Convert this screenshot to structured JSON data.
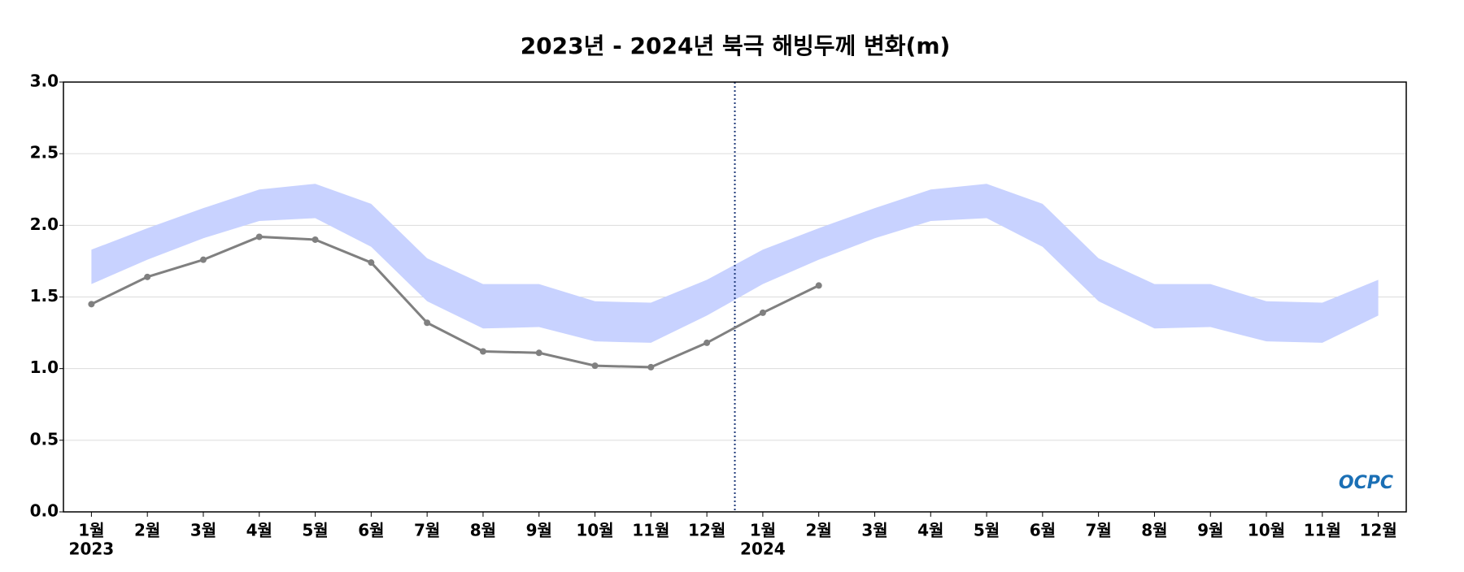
{
  "chart_data": {
    "type": "line",
    "title": "2023년 - 2024년 북극 해빙두께 변화(m)",
    "categories": [
      "1월",
      "2월",
      "3월",
      "4월",
      "5월",
      "6월",
      "7월",
      "8월",
      "9월",
      "10월",
      "11월",
      "12월",
      "1월",
      "2월",
      "3월",
      "4월",
      "5월",
      "6월",
      "7월",
      "8월",
      "9월",
      "10월",
      "11월",
      "12월"
    ],
    "years": [
      "2023",
      "2024"
    ],
    "band": {
      "color": "#c8d2ff",
      "upper": [
        1.83,
        1.98,
        2.12,
        2.25,
        2.29,
        2.15,
        1.77,
        1.59,
        1.59,
        1.47,
        1.46,
        1.62,
        1.83,
        1.98,
        2.12,
        2.25,
        2.29,
        2.15,
        1.77,
        1.59,
        1.59,
        1.47,
        1.46,
        1.62
      ],
      "lower": [
        1.59,
        1.76,
        1.91,
        2.03,
        2.05,
        1.85,
        1.47,
        1.28,
        1.29,
        1.19,
        1.18,
        1.37,
        1.59,
        1.76,
        1.91,
        2.03,
        2.05,
        1.85,
        1.47,
        1.28,
        1.29,
        1.19,
        1.18,
        1.37
      ]
    },
    "line": {
      "color": "#808080",
      "values": [
        1.45,
        1.64,
        1.76,
        1.92,
        1.9,
        1.74,
        1.32,
        1.12,
        1.11,
        1.02,
        1.01,
        1.18,
        1.39,
        1.58,
        null,
        null,
        null,
        null,
        null,
        null,
        null,
        null,
        null,
        null
      ]
    },
    "ylim": [
      0,
      3
    ],
    "yticks": [
      {
        "value": 0,
        "label": "0.0"
      },
      {
        "value": 0.5,
        "label": "0.5"
      },
      {
        "value": 1,
        "label": "1.0"
      },
      {
        "value": 1.5,
        "label": "1.5"
      },
      {
        "value": 2,
        "label": "2.0"
      },
      {
        "value": 2.5,
        "label": "2.5"
      },
      {
        "value": 3,
        "label": "3.0"
      }
    ],
    "grid": true,
    "logo": "OCPC"
  }
}
